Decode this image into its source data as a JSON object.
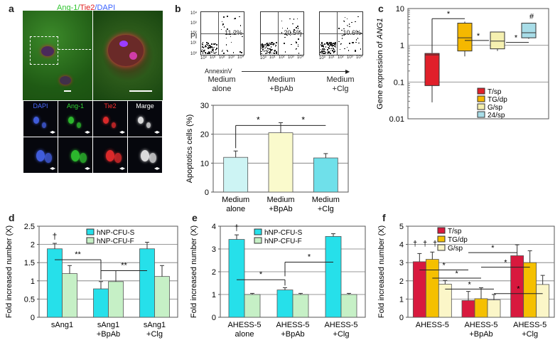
{
  "colors": {
    "t_sp": "#e0202a",
    "tg_dp": "#f5b800",
    "g_sp": "#f5f0b0",
    "s24_sp": "#a8dde8",
    "cfu_s": "#26e0ea",
    "cfu_f": "#c6f0c6",
    "d_alone": "#cdf4f4",
    "d_bpab": "#fafacc",
    "d_clg": "#6fe0ea",
    "f_tsp": "#d8193e",
    "f_tgdp": "#f5c000",
    "f_gsp": "#fbf6c8"
  },
  "panel_a": {
    "label": "a",
    "title_parts": [
      {
        "text": "Ang-1/",
        "color": "#2fc52f"
      },
      {
        "text": "Tie2",
        "color": "#e02020"
      },
      {
        "text": "/DAPI",
        "color": "#3a62ff"
      }
    ],
    "tiles": [
      {
        "label": "DAPI",
        "color": "#4b6bff"
      },
      {
        "label": "Ang-1",
        "color": "#33d533"
      },
      {
        "label": "Tie2",
        "color": "#ff3030"
      },
      {
        "label": "Marge",
        "color": "#ffffff"
      }
    ]
  },
  "panel_b": {
    "label": "b",
    "flow_y_label": "PI",
    "flow_x_label": "AnnexinV",
    "flow_ticks": [
      "10⁰",
      "10¹",
      "10²",
      "10³",
      "10⁴"
    ],
    "quadrants": [
      {
        "pct": "11.2%",
        "caption": [
          "Medium",
          "alone"
        ]
      },
      {
        "pct": "20.5%",
        "caption": [
          "Medium",
          "+BpAb"
        ]
      },
      {
        "pct": "10.6%",
        "caption": [
          "Medium",
          "+Clg"
        ]
      }
    ]
  },
  "panel_c": {
    "label": "c"
  },
  "panel_d": {
    "label": "d"
  },
  "panel_e": {
    "label": "e"
  },
  "panel_f": {
    "label": "f"
  },
  "chart_data": [
    {
      "id": "b",
      "type": "bar",
      "categories": [
        "Medium\nalone",
        "Medium\n+BpAb",
        "Medium\n+Clg"
      ],
      "values": [
        12,
        20.5,
        11.8
      ],
      "errors": [
        2.2,
        3.5,
        1.5
      ],
      "ylabel": "Apoptotics cells (%)",
      "ylim": [
        0,
        30
      ],
      "yticks": [
        0,
        10,
        20,
        30
      ],
      "grid": true,
      "significance": [
        "*",
        "*"
      ]
    },
    {
      "id": "c",
      "type": "box",
      "categories": [
        "T/sp",
        "TG/dp",
        "G/sp",
        "24/sp"
      ],
      "series": [
        {
          "name": "T/sp",
          "min": 0.028,
          "q1": 0.08,
          "median": 0.55,
          "q3": 0.6,
          "max": 0.6
        },
        {
          "name": "TG/dp",
          "min": 0.5,
          "q1": 0.7,
          "median": 1.6,
          "q3": 4.0,
          "max": 4.4
        },
        {
          "name": "G/sp",
          "min": 0.7,
          "q1": 0.8,
          "median": 1.3,
          "q3": 2.3,
          "max": 2.3
        },
        {
          "name": "24/sp",
          "min": 1.5,
          "q1": 1.6,
          "median": 2.2,
          "q3": 4.0,
          "max": 4.0
        }
      ],
      "ylabel": "Gene expression of ANG1",
      "yscale": "log",
      "ylim": [
        0.01,
        10
      ],
      "yticks": [
        0.01,
        0.1,
        1,
        10
      ],
      "ytick_labels": [
        "0.01",
        "0.1",
        "1",
        "10"
      ],
      "significance": [
        "*",
        "*",
        "*",
        "#"
      ],
      "legend": [
        "T/sp",
        "TG/dp",
        "G/sp",
        "24/sp"
      ]
    },
    {
      "id": "d",
      "type": "bar",
      "categories": [
        "sAng1",
        "sAng1\n+BpAb",
        "sAng1\n+Clg"
      ],
      "series": [
        {
          "name": "hNP-CFU-S",
          "values": [
            1.88,
            0.78,
            1.88
          ],
          "errors": [
            0.15,
            0.2,
            0.18
          ]
        },
        {
          "name": "hNP-CFU-F",
          "values": [
            1.2,
            0.98,
            1.12
          ],
          "errors": [
            0.22,
            0.3,
            0.3
          ]
        }
      ],
      "ylabel": "Fold increased number (X)",
      "ylim": [
        0,
        2.5
      ],
      "yticks": [
        0,
        0.5,
        1,
        1.5,
        2,
        2.5
      ],
      "ytick_labels": [
        "0",
        "0.5",
        "1",
        "1.5",
        "2",
        "2.5"
      ],
      "grid": true,
      "significance": [
        "†",
        "**",
        "**"
      ],
      "legend": [
        "hNP-CFU-S",
        "hNP-CFU-F"
      ]
    },
    {
      "id": "e",
      "type": "bar",
      "categories": [
        "AHESS-5\nalone",
        "AHESS-5\n+BpAb",
        "AHESS-5\n+Clg"
      ],
      "series": [
        {
          "name": "hNP-CFU-S",
          "values": [
            3.42,
            1.2,
            3.55
          ],
          "errors": [
            0.2,
            0.1,
            0.12
          ]
        },
        {
          "name": "hNP-CFU-F",
          "values": [
            1.0,
            1.0,
            1.0
          ],
          "errors": [
            0.05,
            0.05,
            0.05
          ]
        }
      ],
      "ylabel": "Fold increased number (X)",
      "ylim": [
        0,
        4
      ],
      "yticks": [
        0,
        1,
        2,
        3,
        4
      ],
      "ytick_labels": [
        "0",
        "1",
        "2",
        "3",
        "4"
      ],
      "grid": true,
      "significance": [
        "†",
        "*",
        "*"
      ],
      "legend": [
        "hNP-CFU-S",
        "hNP-CFU-F"
      ]
    },
    {
      "id": "f",
      "type": "bar",
      "categories": [
        "AHESS-5",
        "AHESS-5\n+BpAb",
        "AHESS-5\n+Clg"
      ],
      "series": [
        {
          "name": "T/sp",
          "values": [
            3.05,
            0.92,
            3.38
          ],
          "errors": [
            0.45,
            0.5,
            0.6
          ]
        },
        {
          "name": "TG/dp",
          "values": [
            3.18,
            1.02,
            3.0
          ],
          "errors": [
            0.4,
            0.6,
            0.65
          ]
        },
        {
          "name": "G/sp",
          "values": [
            1.82,
            0.95,
            1.8
          ],
          "errors": [
            0.2,
            0.3,
            0.5
          ]
        }
      ],
      "ylabel": "Fold increased number (X)",
      "ylim": [
        0,
        5
      ],
      "yticks": [
        0,
        1,
        2,
        3,
        4,
        5
      ],
      "ytick_labels": [
        "0",
        "1",
        "2",
        "3",
        "4",
        "5"
      ],
      "grid": true,
      "significance": [
        "†",
        "†",
        "†",
        "*",
        "*",
        "*",
        "*",
        "*",
        "*"
      ],
      "legend": [
        "T/sp",
        "TG/dp",
        "G/sp"
      ]
    }
  ]
}
